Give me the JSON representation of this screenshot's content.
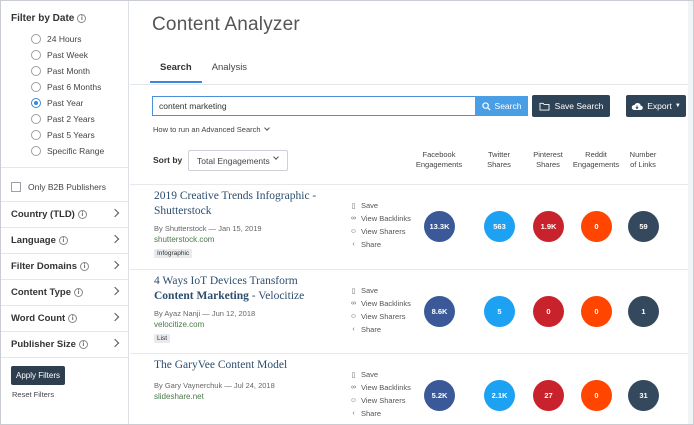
{
  "sidebar": {
    "title": "Filter by Date",
    "date_options": [
      {
        "label": "24 Hours",
        "selected": false
      },
      {
        "label": "Past Week",
        "selected": false
      },
      {
        "label": "Past Month",
        "selected": false
      },
      {
        "label": "Past 6 Months",
        "selected": false
      },
      {
        "label": "Past Year",
        "selected": true
      },
      {
        "label": "Past 2 Years",
        "selected": false
      },
      {
        "label": "Past 5 Years",
        "selected": false
      },
      {
        "label": "Specific Range",
        "selected": false
      }
    ],
    "b2b_label": "Only B2B Publishers",
    "filters": [
      "Country (TLD)",
      "Language",
      "Filter Domains",
      "Content Type",
      "Word Count",
      "Publisher Size"
    ],
    "apply_label": "Apply Filters",
    "reset_label": "Reset Filters"
  },
  "main": {
    "title": "Content Analyzer",
    "tabs": [
      {
        "label": "Search",
        "active": true
      },
      {
        "label": "Analysis",
        "active": false
      }
    ],
    "search": {
      "value": "content marketing",
      "button_label": "Search"
    },
    "save_search_label": "Save Search",
    "export_label": "Export",
    "advanced_link": "How to run an Advanced Search",
    "sort_label": "Sort by",
    "sort_value": "Total Engagements",
    "columns": [
      {
        "l1": "Facebook",
        "l2": "Engagements"
      },
      {
        "l1": "Twitter",
        "l2": "Shares"
      },
      {
        "l1": "Pinterest",
        "l2": "Shares"
      },
      {
        "l1": "Reddit",
        "l2": "Engagements"
      },
      {
        "l1": "Number",
        "l2": "of Links"
      }
    ],
    "actions": [
      "Save",
      "View Backlinks",
      "View Sharers",
      "Share"
    ],
    "results": [
      {
        "title_plain1": "2019 Creative Trends Infographic - Shutterstock",
        "title_bold": "",
        "title_plain2": "",
        "byline": "By Shutterstock",
        "date": "Jan 15, 2019",
        "domain": "shutterstock.com",
        "tag": "Infographic",
        "metrics": [
          "13.3K",
          "563",
          "1.9K",
          "0",
          "59"
        ]
      },
      {
        "title_plain1": "4 Ways IoT Devices Transform ",
        "title_bold": "Content Marketing",
        "title_plain2": " - Velocitize",
        "byline": "By Ayaz Nanji",
        "date": "Jun 12, 2018",
        "domain": "velocitize.com",
        "tag": "List",
        "metrics": [
          "8.6K",
          "5",
          "0",
          "0",
          "1"
        ]
      },
      {
        "title_plain1": "The GaryVee Content Model",
        "title_bold": "",
        "title_plain2": "",
        "byline": "By Gary Vaynerchuk",
        "date": "Jul 24, 2018",
        "domain": "slideshare.net",
        "tag": "",
        "metrics": [
          "5.2K",
          "2.1K",
          "27",
          "0",
          "31"
        ]
      }
    ]
  },
  "colors": {
    "facebook": "#3b5998",
    "twitter": "#1da1f2",
    "pinterest": "#c8232c",
    "reddit": "#ff4500",
    "links": "#34495e",
    "accent": "#3b88d8"
  }
}
